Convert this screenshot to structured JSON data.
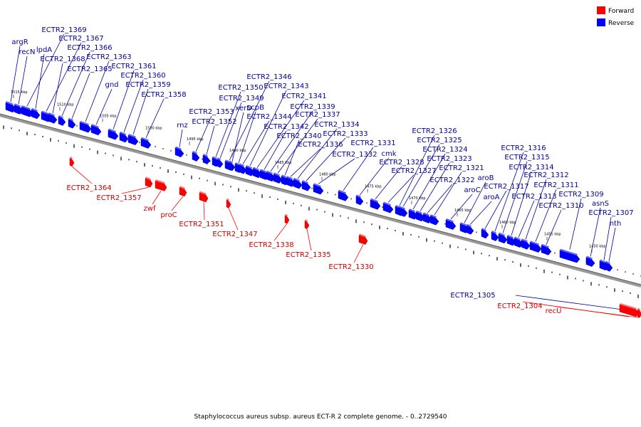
{
  "caption": "Staphylococcus aureus subsp. aureus ECT-R 2 complete genome. - 0..2729540",
  "legend": [
    {
      "label": "Forward",
      "color": "#ff0000"
    },
    {
      "label": "Reverse",
      "color": "#0000ff"
    }
  ],
  "colors": {
    "forward": "#ff0000",
    "reverse": "#0000ff",
    "forward_label": "#cc0000",
    "reverse_label": "#000099",
    "backbone": "#808080"
  },
  "scale_labels": [
    "1515 kbp",
    "1510 kbp",
    "1505 kbp",
    "1500 kbp",
    "1495 kbp",
    "1490 kbp",
    "1485 kbp",
    "1480 kbp",
    "1475 kbp",
    "1470 kbp",
    "1465 kbp",
    "1460 kbp",
    "1455 kbp",
    "1450 kbp"
  ],
  "reverse_genes": [
    "argR",
    "recN",
    "ECTR2_1369",
    "lpdA",
    "ECTR2_1367",
    "ECTR2_1368",
    "ECTR2_1366",
    "ECTR2_1365",
    "ECTR2_1363",
    "gnd",
    "ECTR2_1361",
    "ECTR2_1360",
    "ECTR2_1359",
    "ECTR2_1358",
    "rnz",
    "ECTR2_1353",
    "ECTR2_1352",
    "ECTR2_1350",
    "ECTR2_1349",
    "ECTR2_1346",
    "xerD",
    "scpB",
    "ECTR2_1344",
    "ECTR2_1343",
    "ECTR2_1341",
    "ECTR2_1342",
    "ECTR2_1339",
    "ECTR2_1337",
    "ECTR2_1340",
    "ECTR2_1336",
    "ECTR2_1334",
    "ECTR2_1333",
    "ECTR2_1332",
    "ECTR2_1331",
    "cmk",
    "ECTR2_1328",
    "ECTR2_1327",
    "ECTR2_1326",
    "ECTR2_1325",
    "ECTR2_1324",
    "ECTR2_1323",
    "ECTR2_1322",
    "ECTR2_1321",
    "aroC",
    "aroB",
    "aroA",
    "ECTR2_1317",
    "ECTR2_1316",
    "ECTR2_1315",
    "ECTR2_1314",
    "ECTR2_1313",
    "ECTR2_1312",
    "ECTR2_1311",
    "ECTR2_1310",
    "ECTR2_1309",
    "asnS",
    "ECTR2_1307",
    "nth",
    "ECTR2_1305"
  ],
  "forward_genes": [
    "ECTR2_1364",
    "ECTR2_1357",
    "zwf",
    "proC",
    "ECTR2_1351",
    "ECTR2_1347",
    "ECTR2_1338",
    "ECTR2_1335",
    "ECTR2_1330",
    "ECTR2_1304",
    "recU"
  ]
}
